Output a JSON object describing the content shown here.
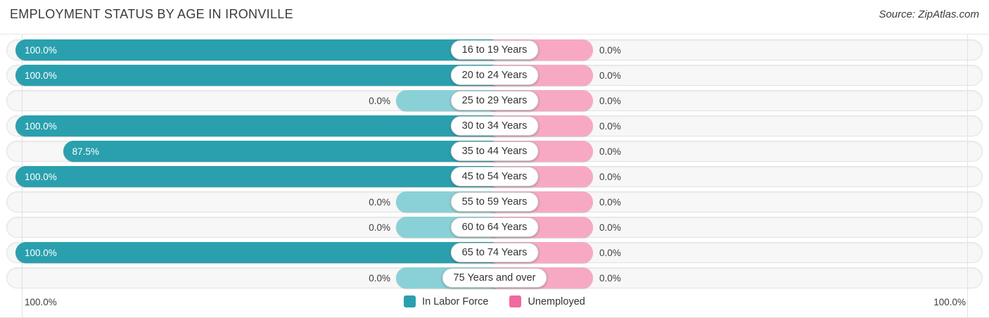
{
  "header": {
    "title": "EMPLOYMENT STATUS BY AGE IN IRONVILLE",
    "source": "Source: ZipAtlas.com"
  },
  "chart_data": {
    "type": "bar",
    "variant": "diverging-horizontal-pyramid",
    "title": "Employment Status by Age in Ironville",
    "categories": [
      "16 to 19 Years",
      "20 to 24 Years",
      "25 to 29 Years",
      "30 to 34 Years",
      "35 to 44 Years",
      "45 to 54 Years",
      "55 to 59 Years",
      "60 to 64 Years",
      "65 to 74 Years",
      "75 Years and over"
    ],
    "series": [
      {
        "name": "In Labor Force",
        "side": "left",
        "values": [
          100.0,
          100.0,
          0.0,
          100.0,
          87.5,
          100.0,
          0.0,
          0.0,
          100.0,
          0.0
        ]
      },
      {
        "name": "Unemployed",
        "side": "right",
        "values": [
          0.0,
          0.0,
          0.0,
          0.0,
          0.0,
          0.0,
          0.0,
          0.0,
          0.0,
          0.0
        ]
      }
    ],
    "axis": {
      "left_label": "100.0%",
      "right_label": "100.0%",
      "min": 0,
      "max": 100,
      "grid": "at-100-percent-both-sides"
    },
    "legend": [
      {
        "label": "In Labor Force",
        "color": "#2aa0ae"
      },
      {
        "label": "Unemployed",
        "color": "#ef6a9e"
      }
    ],
    "colors": {
      "labor_force": "#2aa0ae",
      "labor_force_zero": "#8ad1d7",
      "unemployed": "#ef6a9e",
      "unemployed_zero": "#f7a8c3",
      "track": "#f7f7f7",
      "track_border": "#e3e3e3"
    }
  },
  "rows": [
    {
      "age": "16 to 19 Years",
      "labor_label": "100.0%",
      "unemployed_label": "0.0%"
    },
    {
      "age": "20 to 24 Years",
      "labor_label": "100.0%",
      "unemployed_label": "0.0%"
    },
    {
      "age": "25 to 29 Years",
      "labor_label": "0.0%",
      "unemployed_label": "0.0%"
    },
    {
      "age": "30 to 34 Years",
      "labor_label": "100.0%",
      "unemployed_label": "0.0%"
    },
    {
      "age": "35 to 44 Years",
      "labor_label": "87.5%",
      "unemployed_label": "0.0%"
    },
    {
      "age": "45 to 54 Years",
      "labor_label": "100.0%",
      "unemployed_label": "0.0%"
    },
    {
      "age": "55 to 59 Years",
      "labor_label": "0.0%",
      "unemployed_label": "0.0%"
    },
    {
      "age": "60 to 64 Years",
      "labor_label": "0.0%",
      "unemployed_label": "0.0%"
    },
    {
      "age": "65 to 74 Years",
      "labor_label": "100.0%",
      "unemployed_label": "0.0%"
    },
    {
      "age": "75 Years and over",
      "labor_label": "0.0%",
      "unemployed_label": "0.0%"
    }
  ]
}
